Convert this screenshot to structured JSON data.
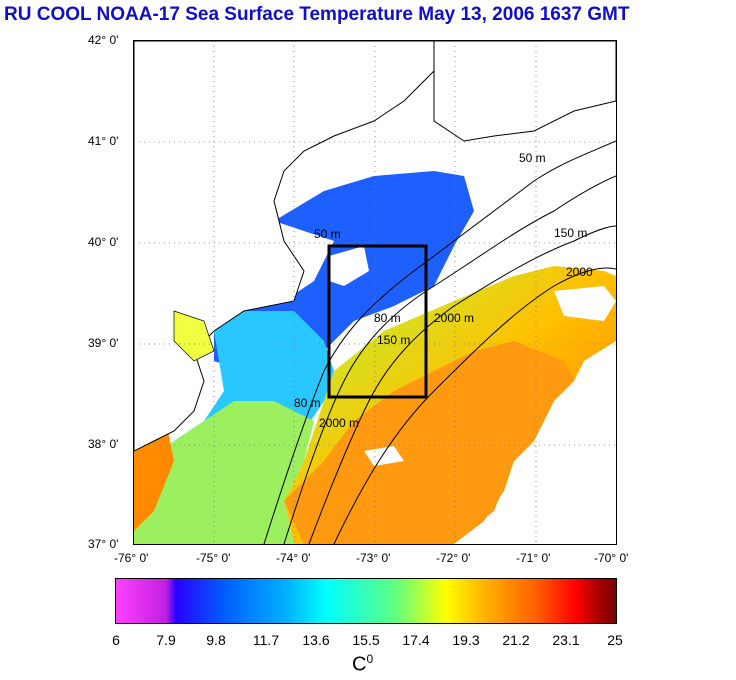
{
  "title": "RU COOL  NOAA-17 Sea Surface Temperature May 13, 2006 1637 GMT",
  "map": {
    "lat_labels": [
      "42° 0'",
      "41° 0'",
      "40° 0'",
      "39° 0'",
      "38° 0'",
      "37° 0'"
    ],
    "lon_labels": [
      "-76° 0'",
      "-75° 0'",
      "-74° 0'",
      "-73° 0'",
      "-72° 0'",
      "-71° 0'",
      "-70° 0'"
    ],
    "contour_labels": [
      "50 m",
      "80 m",
      "150 m",
      "2000 m",
      "2000",
      "50 m",
      "80 m",
      "150 m",
      "2000 m"
    ],
    "colors": {
      "land": "#ffffff",
      "cold": "#1e5aff",
      "mid": "#20d0ff",
      "warm": "#ffd000",
      "hot": "#ff7a00"
    }
  },
  "colorbar": {
    "ticks": [
      "6",
      "7.9",
      "9.8",
      "11.7",
      "13.6",
      "15.5",
      "17.4",
      "19.3",
      "21.2",
      "23.1",
      "25"
    ],
    "unit": "C",
    "unit_sup": "0",
    "range": [
      6,
      25
    ]
  }
}
